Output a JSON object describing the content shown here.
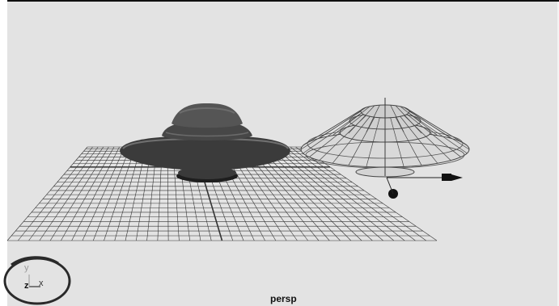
{
  "viewport": {
    "camera_label": "persp",
    "axis_indicator": {
      "y_label": "y",
      "z_label": "z",
      "x_label": "x"
    },
    "background_color": "#e3e3e3",
    "grid_color": "#333333",
    "solid_object_color": "#4a4a4a",
    "wireframe_color": "#444444"
  },
  "icons": {
    "ufo_solid": "ufo-shaded-icon",
    "ufo_wireframe": "ufo-wireframe-icon",
    "move_manipulator": "move-arrow-icon"
  }
}
